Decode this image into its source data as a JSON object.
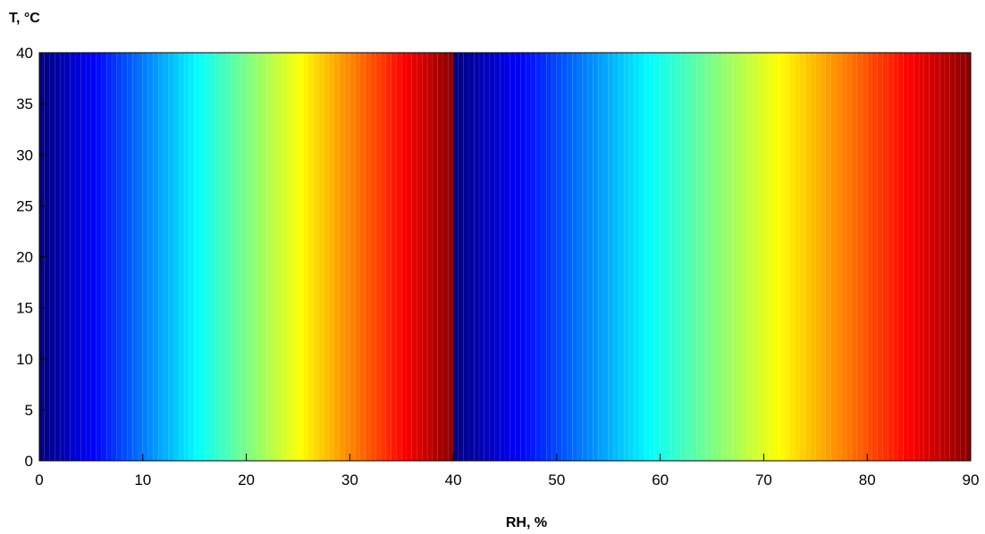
{
  "chart_data": {
    "type": "heatmap",
    "title": "",
    "xlabel": "RH, %",
    "ylabel": "T, °C",
    "xlim": [
      0,
      90
    ],
    "ylim": [
      0,
      40
    ],
    "x_ticks": [
      0,
      10,
      20,
      30,
      40,
      50,
      60,
      70,
      80,
      90
    ],
    "y_ticks": [
      0,
      5,
      10,
      15,
      20,
      25,
      30,
      35,
      40
    ],
    "x_tick_labels": [
      "0",
      "10",
      "20",
      "30",
      "40",
      "50",
      "60",
      "70",
      "80",
      "90"
    ],
    "y_tick_labels": [
      "0",
      "5",
      "10",
      "15",
      "20",
      "25",
      "30",
      "35",
      "40"
    ],
    "colormap": "jet",
    "stripe_step_rh": 0.5,
    "color_cycles": [
      {
        "rh_start": 0,
        "rh_end": 40
      },
      {
        "rh_start": 40,
        "rh_end": 90
      }
    ],
    "grid": false,
    "legend": "none",
    "colors": {
      "background": "#ffffff",
      "axis": "#000000",
      "stripe_separator": "#ffffff"
    }
  }
}
